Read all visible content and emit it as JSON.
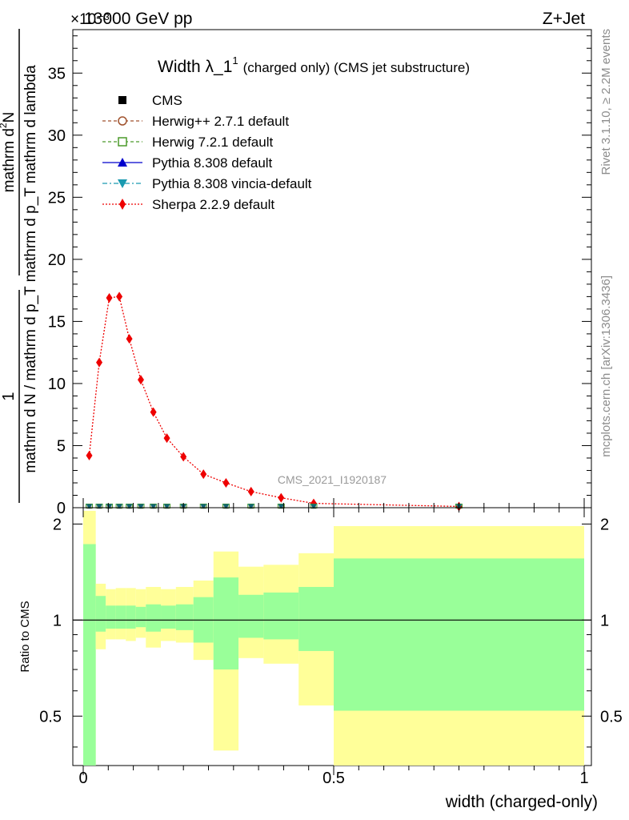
{
  "header": {
    "left": "13000 GeV pp",
    "right": "Z+Jet",
    "exponent": "×10⁻³"
  },
  "side_labels": {
    "rivet": "Rivet 3.1.10, ≥ 2.2M events",
    "mcplots": "mcplots.cern.ch [arXiv:1306.3436]"
  },
  "watermark": "CMS_2021_I1920187",
  "chart_data": [
    {
      "type": "line",
      "title": "Width λ_1¹ (charged only) (CMS jet substructure)",
      "title_main": "Width λ_1",
      "title_sup": "1",
      "title_rest": "(charged only) (CMS jet substructure)",
      "xlabel": "width (charged-only)",
      "ylabel_parts": {
        "one": "1",
        "num": "mathrm d²N",
        "num_main": "mathrm d",
        "num_sup": "2",
        "num_end": "N",
        "den": "mathrm d N / mathrm d p_T mathrm d p_T mathrm d lambda"
      },
      "xlim": [
        0,
        1
      ],
      "ylim": [
        0,
        38.5
      ],
      "y_unit_multiplier": "×10⁻³",
      "y_ticks": [
        0,
        5,
        10,
        15,
        20,
        25,
        30,
        35
      ],
      "x_ticks": [
        0,
        0.5,
        1
      ],
      "x_tick_labels": [
        "0",
        "0.5",
        "1"
      ],
      "legend_position": "top-left",
      "legend": [
        {
          "name": "CMS",
          "color": "#000000",
          "marker": "square-filled",
          "line": "none"
        },
        {
          "name": "Herwig++ 2.7.1 default",
          "color": "#a0522d",
          "marker": "circle-open",
          "line": "dashed"
        },
        {
          "name": "Herwig 7.2.1 default",
          "color": "#4c9a2a",
          "marker": "square-open",
          "line": "dashed"
        },
        {
          "name": "Pythia 8.308 default",
          "color": "#0000cc",
          "marker": "triangle-up-filled",
          "line": "solid"
        },
        {
          "name": "Pythia 8.308 vincia-default",
          "color": "#1a9ab0",
          "marker": "triangle-down-filled",
          "line": "dashdot"
        },
        {
          "name": "Sherpa 2.2.9 default",
          "color": "#ee0000",
          "marker": "diamond-filled",
          "line": "dotted"
        }
      ],
      "series": [
        {
          "name": "Sherpa 2.2.9 default",
          "x": [
            0.012,
            0.032,
            0.052,
            0.072,
            0.092,
            0.115,
            0.14,
            0.167,
            0.2,
            0.24,
            0.285,
            0.335,
            0.395,
            0.46,
            0.75
          ],
          "y": [
            4.2,
            11.7,
            16.9,
            17.0,
            13.6,
            10.3,
            7.7,
            5.6,
            4.1,
            2.7,
            2.0,
            1.3,
            0.8,
            0.35,
            0.1
          ]
        },
        {
          "name": "CMS",
          "x": [
            0.012,
            0.032,
            0.052,
            0.072,
            0.092,
            0.115,
            0.14,
            0.167,
            0.2,
            0.24,
            0.285,
            0.335,
            0.395,
            0.46,
            0.75
          ],
          "y": [
            0.1,
            0.1,
            0.1,
            0.1,
            0.1,
            0.1,
            0.1,
            0.1,
            0.1,
            0.1,
            0.1,
            0.1,
            0.1,
            0.1,
            0.1
          ]
        }
      ]
    },
    {
      "type": "area",
      "ylabel": "Ratio to CMS",
      "xlabel": "width (charged-only)",
      "xlim": [
        0,
        1
      ],
      "ylim": [
        0.35,
        2.25
      ],
      "y_ticks": [
        0.5,
        1,
        2
      ],
      "y_tick_labels": [
        "0.5",
        "1",
        "2"
      ],
      "reference_line": 1,
      "band_colors": {
        "outer": "#ffff99",
        "inner": "#99ff99"
      },
      "bins": [
        {
          "lo": 0.0,
          "hi": 0.025,
          "outer": [
            0.35,
            2.2
          ],
          "inner": [
            0.35,
            1.73
          ]
        },
        {
          "lo": 0.025,
          "hi": 0.045,
          "outer": [
            0.81,
            1.3
          ],
          "inner": [
            0.92,
            1.19
          ]
        },
        {
          "lo": 0.045,
          "hi": 0.065,
          "outer": [
            0.87,
            1.25
          ],
          "inner": [
            0.94,
            1.11
          ]
        },
        {
          "lo": 0.065,
          "hi": 0.085,
          "outer": [
            0.87,
            1.26
          ],
          "inner": [
            0.94,
            1.11
          ]
        },
        {
          "lo": 0.085,
          "hi": 0.105,
          "outer": [
            0.86,
            1.26
          ],
          "inner": [
            0.94,
            1.11
          ]
        },
        {
          "lo": 0.105,
          "hi": 0.125,
          "outer": [
            0.88,
            1.25
          ],
          "inner": [
            0.95,
            1.1
          ]
        },
        {
          "lo": 0.125,
          "hi": 0.155,
          "outer": [
            0.82,
            1.27
          ],
          "inner": [
            0.92,
            1.12
          ]
        },
        {
          "lo": 0.155,
          "hi": 0.185,
          "outer": [
            0.86,
            1.25
          ],
          "inner": [
            0.94,
            1.11
          ]
        },
        {
          "lo": 0.185,
          "hi": 0.22,
          "outer": [
            0.85,
            1.27
          ],
          "inner": [
            0.93,
            1.12
          ]
        },
        {
          "lo": 0.22,
          "hi": 0.26,
          "outer": [
            0.75,
            1.33
          ],
          "inner": [
            0.85,
            1.18
          ]
        },
        {
          "lo": 0.26,
          "hi": 0.31,
          "outer": [
            0.39,
            1.64
          ],
          "inner": [
            0.7,
            1.36
          ]
        },
        {
          "lo": 0.31,
          "hi": 0.36,
          "outer": [
            0.76,
            1.47
          ],
          "inner": [
            0.88,
            1.2
          ]
        },
        {
          "lo": 0.36,
          "hi": 0.43,
          "outer": [
            0.73,
            1.49
          ],
          "inner": [
            0.87,
            1.22
          ]
        },
        {
          "lo": 0.43,
          "hi": 0.5,
          "outer": [
            0.54,
            1.62
          ],
          "inner": [
            0.8,
            1.27
          ]
        },
        {
          "lo": 0.5,
          "hi": 1.0,
          "outer": [
            0.25,
            1.97
          ],
          "inner": [
            0.52,
            1.56
          ]
        }
      ]
    }
  ]
}
